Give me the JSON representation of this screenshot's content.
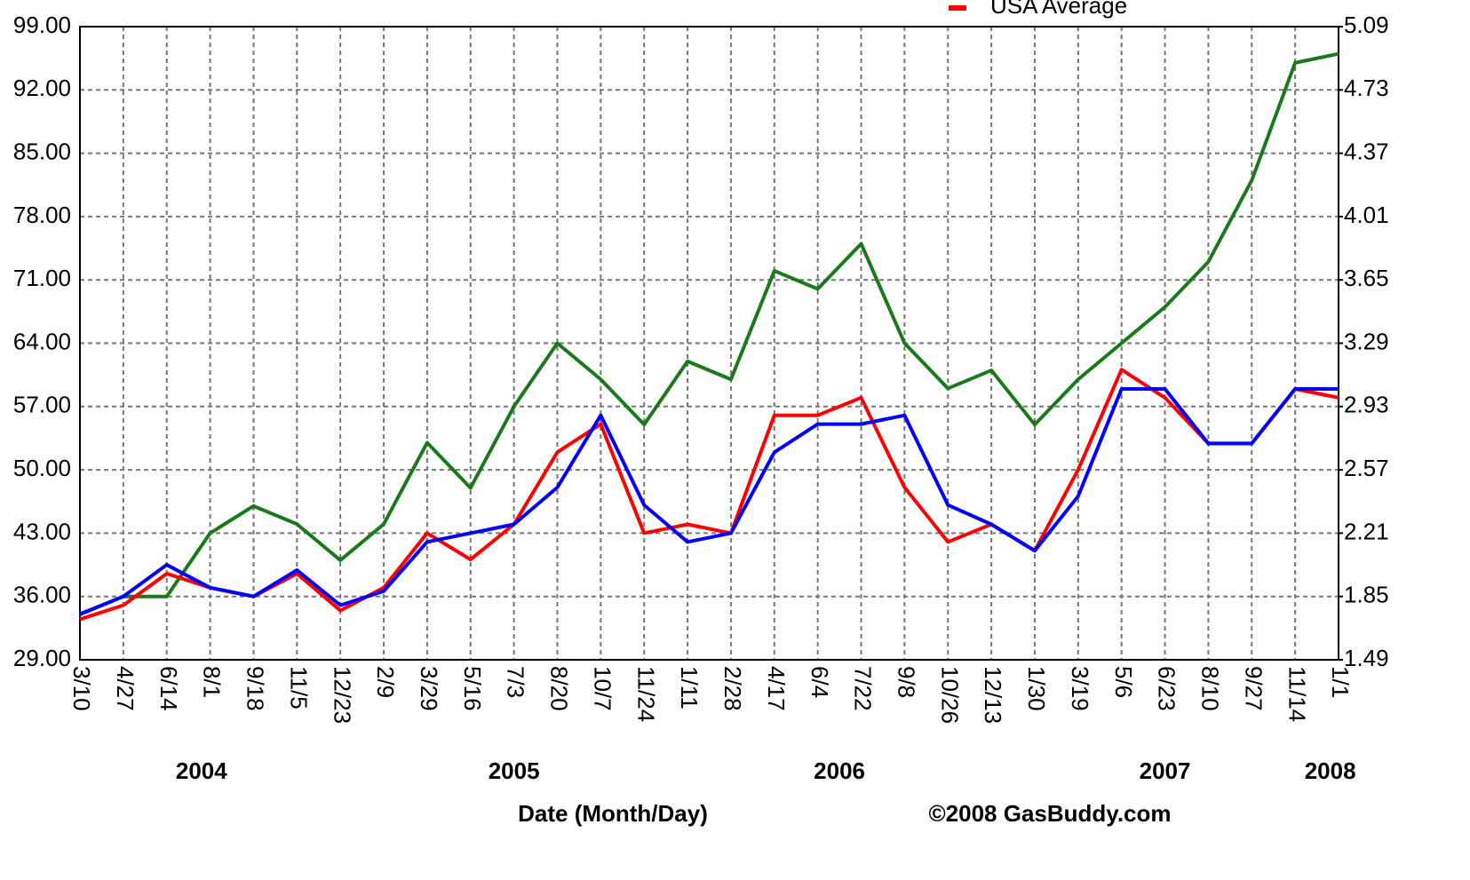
{
  "chart_data": {
    "type": "line",
    "legend": "top",
    "grid": true,
    "xlabel": "Date (Month/Day)",
    "credit": "©2008 GasBuddy.com",
    "years": [
      "2004",
      "2005",
      "2006",
      "2007",
      "2008"
    ],
    "categories": [
      "3/10",
      "4/27",
      "6/14",
      "8/1",
      "9/18",
      "11/5",
      "12/23",
      "2/9",
      "3/29",
      "5/16",
      "7/3",
      "8/20",
      "10/7",
      "11/24",
      "1/11",
      "2/28",
      "4/17",
      "6/4",
      "7/22",
      "9/8",
      "10/26",
      "12/13",
      "1/30",
      "3/19",
      "5/6",
      "6/23",
      "8/10",
      "9/27",
      "11/14",
      "1/1"
    ],
    "ylim": [
      29,
      99
    ],
    "yticks": [
      {
        "value": 29,
        "label": "29.00"
      },
      {
        "value": 36,
        "label": "36.00"
      },
      {
        "value": 43,
        "label": "43.00"
      },
      {
        "value": 50,
        "label": "50.00"
      },
      {
        "value": 57,
        "label": "57.00"
      },
      {
        "value": 64,
        "label": "64.00"
      },
      {
        "value": 71,
        "label": "71.00"
      },
      {
        "value": 78,
        "label": "78.00"
      },
      {
        "value": 85,
        "label": "85.00"
      },
      {
        "value": 92,
        "label": "92.00"
      },
      {
        "value": 99,
        "label": "99.00"
      }
    ],
    "y2lim": [
      1.49,
      5.09
    ],
    "y2ticks": [
      1.49,
      1.85,
      2.21,
      2.57,
      2.93,
      3.29,
      3.65,
      4.01,
      4.37,
      4.73,
      5.09
    ],
    "series": [
      {
        "color": "#1a7a1a",
        "values": [
          34,
          36,
          36,
          43,
          46,
          44,
          40,
          44,
          53,
          48,
          57,
          64,
          60,
          55,
          62,
          60,
          72,
          70,
          75,
          64,
          59,
          61,
          55,
          60,
          64,
          68,
          73,
          82,
          95,
          96
        ]
      },
      {
        "name": "USA Average",
        "color": "#ff0000",
        "axis": "y2",
        "values": [
          1.72,
          1.8,
          1.98,
          1.9,
          1.85,
          1.98,
          1.77,
          1.9,
          2.21,
          2.06,
          2.26,
          2.67,
          2.83,
          2.21,
          2.26,
          2.21,
          2.88,
          2.88,
          2.98,
          2.47,
          2.16,
          2.26,
          2.11,
          2.57,
          3.14,
          2.98,
          2.72,
          2.72,
          3.03,
          2.98
        ]
      },
      {
        "color": "#0000ff",
        "axis": "y2",
        "values": [
          1.75,
          1.85,
          2.03,
          1.9,
          1.85,
          2.0,
          1.8,
          1.88,
          2.16,
          2.21,
          2.26,
          2.47,
          2.88,
          2.37,
          2.16,
          2.21,
          2.67,
          2.83,
          2.83,
          2.88,
          2.37,
          2.26,
          2.11,
          2.42,
          3.03,
          3.03,
          2.72,
          2.72,
          3.03,
          3.03
        ]
      }
    ]
  }
}
